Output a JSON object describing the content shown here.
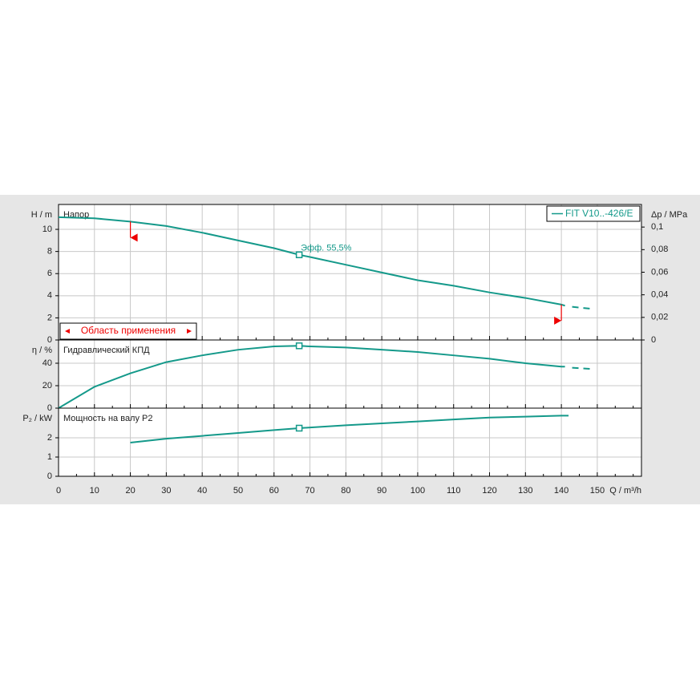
{
  "chart_data": [
    {
      "type": "line",
      "ylabel": "H / m",
      "y2label": "Δp / MPa",
      "panel_label": "Напор",
      "xlim": [
        0,
        162.3
      ],
      "xticks": [
        0,
        10,
        20,
        30,
        40,
        50,
        60,
        70,
        80,
        90,
        100,
        110,
        120,
        130,
        140,
        150
      ],
      "ylim": [
        0,
        12.25
      ],
      "yticks": [
        0,
        2,
        4,
        6,
        8,
        10
      ],
      "y2lim": [
        0,
        0.12
      ],
      "y2ticks": [
        {
          "value": 0,
          "label": "0"
        },
        {
          "value": 0.02,
          "label": "0,02"
        },
        {
          "value": 0.04,
          "label": "0,04"
        },
        {
          "value": 0.06,
          "label": "0,06"
        },
        {
          "value": 0.08,
          "label": "0,08"
        },
        {
          "value": 0.1,
          "label": "0,1"
        }
      ],
      "grid": true,
      "legend": "top-right",
      "series": [
        {
          "name": "FIT V10..-426/E",
          "color": "#14998a",
          "x": [
            0,
            10,
            20,
            30,
            40,
            50,
            60,
            67,
            70,
            80,
            90,
            100,
            110,
            120,
            130,
            140,
            141
          ],
          "values": [
            11.1,
            11.0,
            10.7,
            10.3,
            9.7,
            9.0,
            8.3,
            7.7,
            7.5,
            6.8,
            6.1,
            5.4,
            4.9,
            4.3,
            3.8,
            3.2,
            3.1
          ]
        },
        {
          "color": "#14998a",
          "dashed": true,
          "x": [
            143,
            148
          ],
          "values": [
            3.0,
            2.83
          ]
        }
      ],
      "duty_point": {
        "x": 67,
        "value": 7.7
      },
      "annotation": "Эфф.  55,5%",
      "range_label": "Область применения",
      "range": [
        {
          "x": 20,
          "value": 10.7
        },
        {
          "x": 140,
          "value": 3.2
        }
      ]
    },
    {
      "type": "line",
      "ylabel": "η / %",
      "panel_label": "Гидравлический КПД",
      "xlim": [
        0,
        162.3
      ],
      "xticks": [
        0,
        10,
        20,
        30,
        40,
        50,
        60,
        70,
        80,
        90,
        100,
        110,
        120,
        130,
        140,
        150
      ],
      "ylim": [
        0,
        60.7
      ],
      "yticks": [
        0,
        20,
        40
      ],
      "grid": true,
      "series": [
        {
          "color": "#14998a",
          "x": [
            0,
            10,
            20,
            30,
            40,
            50,
            60,
            67,
            70,
            80,
            90,
            100,
            110,
            120,
            130,
            140,
            141
          ],
          "values": [
            0,
            19,
            31,
            41,
            47,
            52,
            55,
            55.5,
            55,
            54,
            52,
            50,
            47,
            44,
            40,
            37,
            37
          ]
        },
        {
          "color": "#14998a",
          "dashed": true,
          "x": [
            143,
            148
          ],
          "values": [
            36,
            35
          ]
        }
      ],
      "duty_point": {
        "x": 67,
        "value": 55.5
      }
    },
    {
      "type": "line",
      "ylabel": "P₂ / kW",
      "panel_label": "Мощность на валу P2",
      "xlabel": "Q / m³/h",
      "xlim": [
        0,
        162.3
      ],
      "xticks": [
        0,
        10,
        20,
        30,
        40,
        50,
        60,
        70,
        80,
        90,
        100,
        110,
        120,
        130,
        140,
        150
      ],
      "ylim": [
        0,
        3.54
      ],
      "yticks": [
        0,
        1,
        2
      ],
      "grid": true,
      "series": [
        {
          "color": "#14998a",
          "x": [
            20,
            30,
            40,
            50,
            60,
            67,
            80,
            90,
            100,
            110,
            120,
            130,
            140,
            142
          ],
          "values": [
            1.75,
            1.95,
            2.1,
            2.25,
            2.4,
            2.5,
            2.65,
            2.75,
            2.85,
            2.95,
            3.05,
            3.1,
            3.15,
            3.15
          ]
        }
      ],
      "duty_point": {
        "x": 67,
        "value": 2.5
      }
    }
  ]
}
